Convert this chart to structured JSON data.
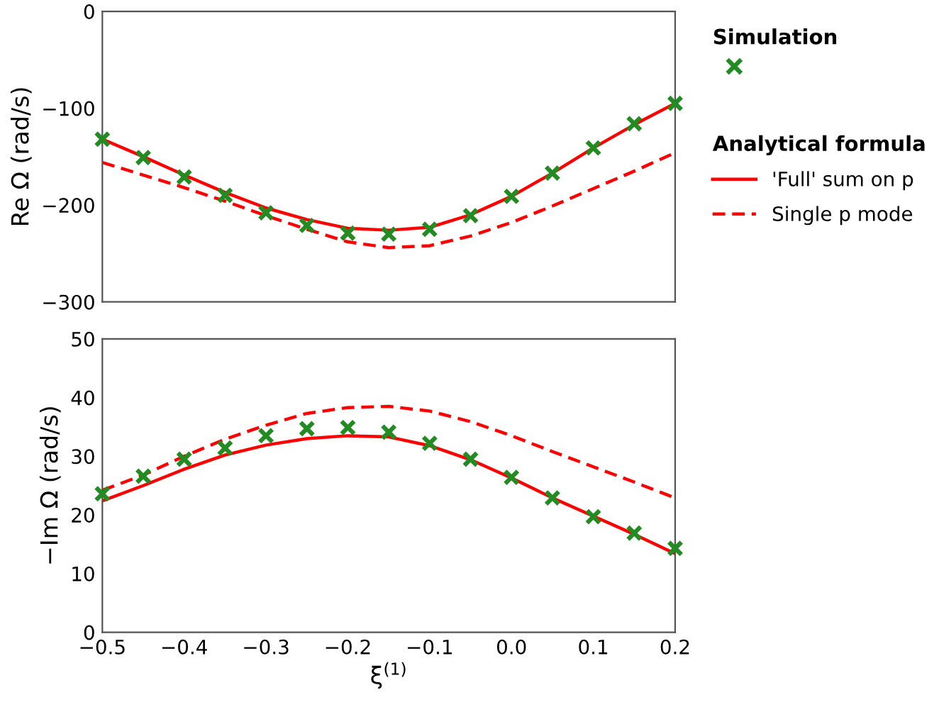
{
  "chart_data": [
    {
      "type": "line",
      "ylabel": "Re Ω (rad/s)",
      "x": [
        -0.5,
        -0.45,
        -0.4,
        -0.35,
        -0.3,
        -0.25,
        -0.2,
        -0.15,
        -0.1,
        -0.05,
        0.0,
        0.05,
        0.1,
        0.15,
        0.2
      ],
      "xlim": [
        -0.5,
        0.2
      ],
      "ylim": [
        -300,
        0
      ],
      "yticks": [
        0,
        {
          "value": -100,
          "label": "−100"
        },
        {
          "value": -200,
          "label": "−200"
        },
        {
          "value": -300,
          "label": "−300"
        }
      ],
      "tick_labels": "y",
      "grid": false,
      "legend": "right",
      "legend_title": "Simulation",
      "annotations": [
        "Analytical formula"
      ],
      "series": [
        {
          "type": "scatter",
          "color": "#228b22",
          "marker": "cross",
          "values": [
            -132,
            -151,
            -171,
            -190,
            -208,
            -221,
            -229,
            -230,
            -225,
            -211,
            -191,
            -167,
            -141,
            -116,
            -95
          ]
        },
        {
          "name": "'Full' sum on p",
          "color": "#ff0000",
          "line_style": "solid",
          "values": [
            -132,
            -150,
            -169,
            -187,
            -203,
            -215,
            -224,
            -226,
            -223,
            -210,
            -191,
            -167,
            -141,
            -117,
            -95
          ]
        },
        {
          "name": "Single p mode",
          "color": "#ff0000",
          "line_style": "dashed",
          "values": [
            -156,
            -169,
            -182,
            -196,
            -211,
            -225,
            -238,
            -244,
            -242,
            -232,
            -218,
            -201,
            -183,
            -165,
            -146
          ]
        }
      ]
    },
    {
      "type": "line",
      "xlabel": "ξ$^{(1)}$",
      "ylabel": "−Im Ω (rad/s)",
      "x": [
        -0.5,
        -0.45,
        -0.4,
        -0.35,
        -0.3,
        -0.25,
        -0.2,
        -0.15,
        -0.1,
        -0.05,
        0.0,
        0.05,
        0.1,
        0.15,
        0.2
      ],
      "xlim": [
        -0.5,
        0.2
      ],
      "xticks": [
        {
          "value": -0.5,
          "label": "−0.5"
        },
        {
          "value": -0.4,
          "label": "−0.4"
        },
        {
          "value": -0.3,
          "label": "−0.3"
        },
        {
          "value": -0.2,
          "label": "−0.2"
        },
        {
          "value": -0.1,
          "label": "−0.1"
        },
        {
          "value": 0.0,
          "label": "0.0"
        },
        {
          "value": 0.1,
          "label": "0.1"
        },
        {
          "value": 0.2,
          "label": "0.2"
        }
      ],
      "ylim": [
        0,
        50
      ],
      "yticks": [
        0,
        10,
        20,
        30,
        40,
        50
      ],
      "grid": false,
      "series": [
        {
          "type": "scatter",
          "color": "#228b22",
          "marker": "cross",
          "values": [
            23.6,
            26.6,
            29.5,
            31.4,
            33.5,
            34.7,
            34.9,
            34.1,
            32.2,
            29.5,
            26.4,
            22.9,
            19.7,
            16.9,
            14.3
          ]
        },
        {
          "color": "#ff0000",
          "line_style": "solid",
          "values": [
            22.4,
            25.0,
            27.8,
            30.2,
            31.9,
            33.0,
            33.5,
            33.3,
            31.8,
            29.4,
            26.3,
            22.9,
            19.8,
            16.7,
            13.4
          ]
        },
        {
          "color": "#ff0000",
          "line_style": "dashed",
          "values": [
            24.2,
            26.8,
            30.0,
            32.9,
            35.3,
            37.3,
            38.3,
            38.5,
            37.7,
            35.9,
            33.5,
            30.8,
            28.2,
            25.6,
            22.9
          ]
        }
      ]
    }
  ]
}
